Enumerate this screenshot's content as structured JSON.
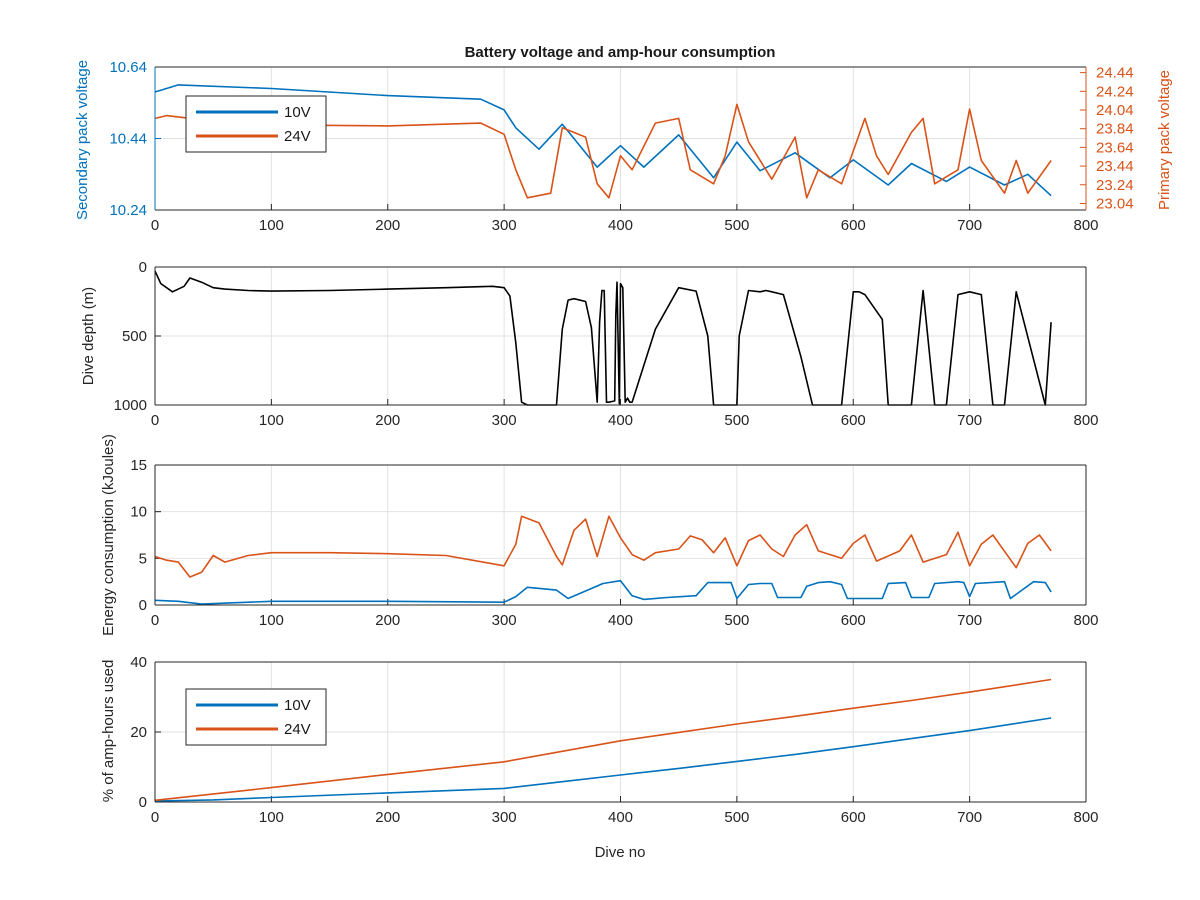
{
  "colors": {
    "blue": "#0072BD",
    "orange": "#D95319",
    "black": "#000000",
    "grid": "#e2e2e2",
    "axis": "#262626"
  },
  "chart_data": [
    {
      "type": "line",
      "title": "Battery voltage and amp-hour consumption",
      "xlabel": "",
      "ylabel": "Secondary pack voltage",
      "ylabel_right": "Primary pack voltage",
      "xlim": [
        0,
        800
      ],
      "ylim": [
        10.24,
        10.64
      ],
      "ylim_right": [
        22.97,
        24.5
      ],
      "xticks": [
        "0",
        "100",
        "200",
        "300",
        "400",
        "500",
        "600",
        "700",
        "800"
      ],
      "yticks": [
        "10.24",
        "10.44",
        "10.64"
      ],
      "yticks_right": [
        "23.04",
        "23.24",
        "23.44",
        "23.64",
        "23.84",
        "24.04",
        "24.24",
        "24.44"
      ],
      "grid": true,
      "legend": {
        "placement": "top-left",
        "entries": [
          "10V",
          "24V"
        ]
      },
      "series": [
        {
          "name": "10V",
          "axis": "left",
          "x": [
            0,
            20,
            100,
            200,
            280,
            300,
            310,
            330,
            350,
            380,
            400,
            420,
            450,
            480,
            500,
            520,
            550,
            580,
            600,
            630,
            650,
            680,
            700,
            730,
            750,
            770
          ],
          "values": [
            10.57,
            10.59,
            10.58,
            10.56,
            10.55,
            10.52,
            10.47,
            10.41,
            10.48,
            10.36,
            10.42,
            10.36,
            10.45,
            10.33,
            10.43,
            10.35,
            10.4,
            10.33,
            10.38,
            10.31,
            10.37,
            10.32,
            10.36,
            10.31,
            10.34,
            10.28
          ]
        },
        {
          "name": "24V",
          "axis": "right",
          "x": [
            0,
            10,
            50,
            100,
            200,
            280,
            300,
            310,
            320,
            340,
            350,
            370,
            380,
            390,
            400,
            410,
            430,
            450,
            460,
            480,
            490,
            500,
            510,
            530,
            550,
            560,
            570,
            590,
            610,
            620,
            630,
            650,
            660,
            670,
            690,
            700,
            710,
            730,
            740,
            750,
            770
          ],
          "values": [
            23.95,
            23.98,
            23.92,
            23.88,
            23.87,
            23.9,
            23.78,
            23.4,
            23.1,
            23.15,
            23.85,
            23.75,
            23.25,
            23.1,
            23.55,
            23.4,
            23.9,
            23.95,
            23.4,
            23.25,
            23.55,
            24.1,
            23.7,
            23.3,
            23.75,
            23.1,
            23.4,
            23.25,
            23.95,
            23.55,
            23.35,
            23.8,
            23.95,
            23.25,
            23.4,
            24.05,
            23.5,
            23.15,
            23.5,
            23.15,
            23.5
          ]
        }
      ]
    },
    {
      "type": "line",
      "title": "",
      "xlabel": "",
      "ylabel": "Dive depth (m)",
      "xlim": [
        0,
        800
      ],
      "ylim": [
        0,
        1000
      ],
      "y_reversed": true,
      "xticks": [
        "0",
        "100",
        "200",
        "300",
        "400",
        "500",
        "600",
        "700",
        "800"
      ],
      "yticks": [
        "0",
        "500",
        "1000"
      ],
      "grid": true,
      "series": [
        {
          "name": "",
          "x": [
            0,
            5,
            15,
            25,
            30,
            40,
            50,
            60,
            80,
            100,
            150,
            200,
            250,
            290,
            300,
            305,
            310,
            315,
            320,
            345,
            350,
            355,
            360,
            370,
            375,
            380,
            382,
            384,
            386,
            388,
            390,
            395,
            396,
            397,
            399,
            400,
            402,
            404,
            406,
            408,
            410,
            430,
            450,
            465,
            475,
            480,
            500,
            502,
            510,
            520,
            525,
            530,
            540,
            555,
            565,
            570,
            590,
            600,
            605,
            610,
            625,
            630,
            650,
            660,
            670,
            680,
            690,
            700,
            710,
            720,
            730,
            740,
            765,
            770
          ],
          "values": [
            30,
            120,
            180,
            140,
            80,
            110,
            150,
            160,
            170,
            175,
            170,
            160,
            150,
            140,
            150,
            210,
            550,
            980,
            1000,
            1000,
            450,
            240,
            230,
            250,
            440,
            980,
            400,
            170,
            170,
            980,
            980,
            970,
            350,
            110,
            990,
            120,
            150,
            980,
            950,
            980,
            980,
            450,
            150,
            175,
            500,
            1000,
            1000,
            500,
            170,
            180,
            170,
            180,
            200,
            650,
            1000,
            1000,
            1000,
            180,
            180,
            200,
            380,
            1000,
            1000,
            170,
            1000,
            1000,
            200,
            180,
            200,
            1000,
            1000,
            180,
            1000,
            400
          ]
        }
      ]
    },
    {
      "type": "line",
      "title": "",
      "xlabel": "",
      "ylabel": "Energy consumption (kJoules)",
      "xlim": [
        0,
        800
      ],
      "ylim": [
        0,
        15
      ],
      "xticks": [
        "0",
        "100",
        "200",
        "300",
        "400",
        "500",
        "600",
        "700",
        "800"
      ],
      "yticks": [
        "0",
        "5",
        "10",
        "15"
      ],
      "grid": true,
      "series": [
        {
          "name": "",
          "color": "orange",
          "x": [
            0,
            10,
            20,
            30,
            40,
            50,
            60,
            80,
            100,
            150,
            200,
            250,
            300,
            310,
            315,
            330,
            345,
            350,
            360,
            370,
            380,
            390,
            400,
            410,
            420,
            430,
            450,
            460,
            470,
            480,
            490,
            500,
            510,
            520,
            530,
            540,
            550,
            560,
            570,
            590,
            600,
            610,
            620,
            640,
            650,
            660,
            680,
            690,
            700,
            710,
            720,
            740,
            750,
            760,
            770
          ],
          "values": [
            5.2,
            4.8,
            4.6,
            3.0,
            3.5,
            5.3,
            4.6,
            5.3,
            5.6,
            5.6,
            5.5,
            5.3,
            4.2,
            6.5,
            9.5,
            8.8,
            5.2,
            4.3,
            8.0,
            9.2,
            5.2,
            9.5,
            7.2,
            5.4,
            4.8,
            5.6,
            6.0,
            7.4,
            7.0,
            5.6,
            7.2,
            4.2,
            6.9,
            7.5,
            6.0,
            5.2,
            7.5,
            8.6,
            5.8,
            5.0,
            6.6,
            7.5,
            4.7,
            5.8,
            7.5,
            4.6,
            5.4,
            7.8,
            4.2,
            6.5,
            7.5,
            4.0,
            6.6,
            7.5,
            5.8
          ]
        },
        {
          "name": "",
          "color": "blue",
          "x": [
            0,
            20,
            40,
            100,
            200,
            300,
            310,
            320,
            345,
            355,
            385,
            400,
            410,
            420,
            440,
            465,
            475,
            495,
            500,
            510,
            520,
            530,
            535,
            555,
            560,
            570,
            580,
            590,
            595,
            625,
            630,
            645,
            650,
            665,
            670,
            690,
            695,
            700,
            705,
            730,
            735,
            755,
            765,
            770
          ],
          "values": [
            0.5,
            0.4,
            0.1,
            0.4,
            0.4,
            0.3,
            0.9,
            1.9,
            1.6,
            0.7,
            2.3,
            2.6,
            1.0,
            0.6,
            0.8,
            1.0,
            2.4,
            2.4,
            0.7,
            2.2,
            2.3,
            2.3,
            0.8,
            0.8,
            2.0,
            2.4,
            2.5,
            2.2,
            0.7,
            0.7,
            2.3,
            2.4,
            0.8,
            0.8,
            2.3,
            2.5,
            2.4,
            0.9,
            2.3,
            2.5,
            0.7,
            2.5,
            2.4,
            1.4
          ]
        }
      ]
    },
    {
      "type": "line",
      "title": "",
      "xlabel": "Dive no",
      "ylabel": "% of amp-hours used",
      "xlim": [
        0,
        800
      ],
      "ylim": [
        0,
        40
      ],
      "xticks": [
        "0",
        "100",
        "200",
        "300",
        "400",
        "500",
        "600",
        "700",
        "800"
      ],
      "yticks": [
        "0",
        "20",
        "40"
      ],
      "grid": true,
      "legend": {
        "placement": "top-left",
        "entries": [
          "10V",
          "24V"
        ]
      },
      "series": [
        {
          "name": "10V",
          "x": [
            0,
            50,
            100,
            200,
            300,
            350,
            400,
            450,
            500,
            550,
            600,
            650,
            700,
            770
          ],
          "values": [
            0.3,
            0.6,
            1.3,
            2.6,
            3.9,
            5.8,
            7.7,
            9.6,
            11.6,
            13.6,
            15.8,
            18.1,
            20.4,
            24.0
          ]
        },
        {
          "name": "24V",
          "x": [
            0,
            100,
            200,
            300,
            350,
            400,
            450,
            500,
            550,
            600,
            650,
            700,
            770
          ],
          "values": [
            0.5,
            4.1,
            7.9,
            11.5,
            14.5,
            17.5,
            19.9,
            22.3,
            24.5,
            26.8,
            29.0,
            31.4,
            35.0
          ]
        }
      ]
    }
  ]
}
